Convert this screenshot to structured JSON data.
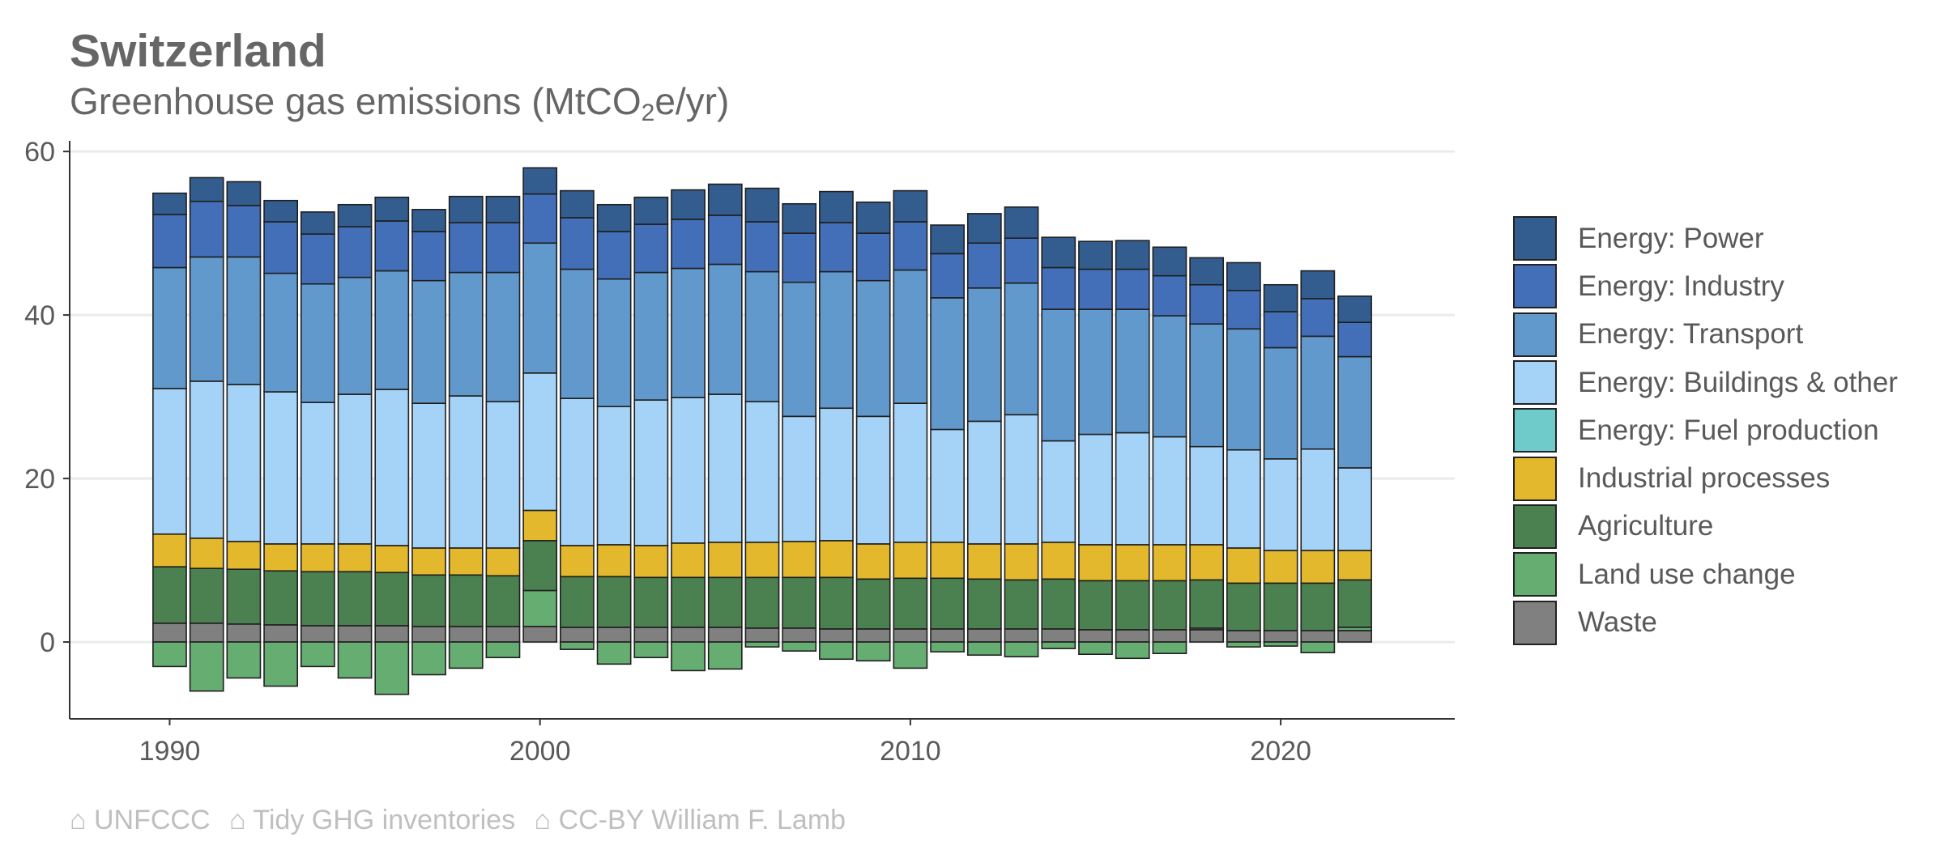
{
  "title": "Switzerland",
  "subtitle_main": "Greenhouse gas emissions (MtCO",
  "subtitle_sub": "2",
  "subtitle_tail": "e/yr)",
  "caption": [
    "⌂ UNFCCC",
    "⌂ Tidy GHG inventories",
    "⌂ CC-BY William F. Lamb"
  ],
  "chart_data": {
    "type": "bar",
    "stacked": true,
    "x": [
      1990,
      1991,
      1992,
      1993,
      1994,
      1995,
      1996,
      1997,
      1998,
      1999,
      2000,
      2001,
      2002,
      2003,
      2004,
      2005,
      2006,
      2007,
      2008,
      2009,
      2010,
      2011,
      2012,
      2013,
      2014,
      2015,
      2016,
      2017,
      2018,
      2019,
      2020,
      2021,
      2022
    ],
    "xticks": [
      1990,
      2000,
      2010,
      2020
    ],
    "yticks": [
      0,
      20,
      40,
      60
    ],
    "xlim": [
      1987.3,
      2024.7
    ],
    "ylim": [
      -9.4,
      61.3
    ],
    "grid": true,
    "legend_position": "right",
    "series": [
      {
        "name": "Waste",
        "color": "#808080",
        "values": [
          2.3,
          2.3,
          2.2,
          2.1,
          2.0,
          2.0,
          2.0,
          1.9,
          1.9,
          1.9,
          1.9,
          1.8,
          1.8,
          1.8,
          1.8,
          1.8,
          1.7,
          1.7,
          1.6,
          1.6,
          1.6,
          1.6,
          1.6,
          1.6,
          1.6,
          1.5,
          1.5,
          1.5,
          1.5,
          1.4,
          1.4,
          1.4,
          1.4
        ]
      },
      {
        "name": "Land use change",
        "color": "#66ad72",
        "values": [
          -3.0,
          -6.0,
          -4.4,
          -5.4,
          -3.0,
          -4.4,
          -6.4,
          -4.0,
          -3.2,
          -1.9,
          4.4,
          -0.9,
          -2.7,
          -1.9,
          -3.5,
          -3.3,
          -0.6,
          -1.1,
          -2.1,
          -2.3,
          -3.2,
          -1.2,
          -1.6,
          -1.8,
          -0.8,
          -1.5,
          -2.0,
          -1.4,
          0.2,
          -0.6,
          -0.5,
          -1.3,
          0.4
        ]
      },
      {
        "name": "Agriculture",
        "color": "#4b8050",
        "values": [
          6.9,
          6.7,
          6.7,
          6.6,
          6.6,
          6.6,
          6.5,
          6.3,
          6.3,
          6.2,
          6.1,
          6.2,
          6.2,
          6.1,
          6.1,
          6.1,
          6.2,
          6.2,
          6.3,
          6.1,
          6.2,
          6.2,
          6.1,
          6.0,
          6.1,
          6.0,
          6.0,
          6.0,
          5.9,
          5.8,
          5.8,
          5.8,
          5.8
        ]
      },
      {
        "name": "Industrial processes",
        "color": "#e4b82c",
        "values": [
          4.0,
          3.7,
          3.4,
          3.3,
          3.4,
          3.4,
          3.3,
          3.3,
          3.3,
          3.4,
          3.7,
          3.8,
          3.9,
          3.9,
          4.2,
          4.3,
          4.3,
          4.4,
          4.5,
          4.3,
          4.4,
          4.4,
          4.3,
          4.4,
          4.5,
          4.4,
          4.4,
          4.4,
          4.3,
          4.3,
          4.0,
          4.0,
          3.6
        ]
      },
      {
        "name": "Energy: Fuel production",
        "color": "#6ecbca",
        "values": [
          0,
          0,
          0,
          0,
          0,
          0,
          0,
          0,
          0,
          0,
          0,
          0,
          0,
          0,
          0,
          0,
          0,
          0,
          0,
          0,
          0,
          0,
          0,
          0,
          0,
          0,
          0,
          0,
          0,
          0,
          0,
          0,
          0
        ]
      },
      {
        "name": "Energy: Buildings & other",
        "color": "#a5d3f8",
        "values": [
          17.8,
          19.2,
          19.2,
          18.6,
          17.3,
          18.3,
          19.1,
          17.7,
          18.6,
          17.9,
          16.8,
          18.0,
          16.9,
          17.8,
          17.8,
          18.1,
          17.2,
          15.3,
          16.2,
          15.6,
          17.0,
          13.8,
          15.0,
          15.8,
          12.4,
          13.5,
          13.7,
          13.2,
          12.0,
          12.0,
          11.2,
          12.4,
          10.1
        ]
      },
      {
        "name": "Energy: Transport",
        "color": "#6299cc",
        "values": [
          14.8,
          15.2,
          15.6,
          14.5,
          14.5,
          14.3,
          14.5,
          15.0,
          15.1,
          15.8,
          15.9,
          15.8,
          15.6,
          15.6,
          15.8,
          15.9,
          15.9,
          16.4,
          16.7,
          16.6,
          16.3,
          16.1,
          16.3,
          16.1,
          16.1,
          15.3,
          15.1,
          14.8,
          15.0,
          14.8,
          13.6,
          13.8,
          13.6
        ]
      },
      {
        "name": "Energy: Industry",
        "color": "#426fb7",
        "values": [
          6.5,
          6.8,
          6.3,
          6.3,
          6.1,
          6.2,
          6.1,
          6.0,
          6.1,
          6.1,
          6.0,
          6.3,
          5.8,
          5.9,
          6.0,
          6.0,
          6.1,
          6.0,
          6.0,
          5.8,
          5.9,
          5.4,
          5.5,
          5.5,
          5.1,
          4.9,
          4.9,
          4.9,
          4.8,
          4.7,
          4.4,
          4.6,
          4.2
        ]
      },
      {
        "name": "Energy: Power",
        "color": "#345d8f",
        "values": [
          2.6,
          2.9,
          2.9,
          2.6,
          2.7,
          2.7,
          2.9,
          2.7,
          3.2,
          3.2,
          3.2,
          3.3,
          3.3,
          3.3,
          3.6,
          3.8,
          4.1,
          3.6,
          3.8,
          3.8,
          3.8,
          3.5,
          3.6,
          3.8,
          3.7,
          3.4,
          3.5,
          3.5,
          3.3,
          3.4,
          3.3,
          3.4,
          3.2
        ]
      }
    ]
  }
}
